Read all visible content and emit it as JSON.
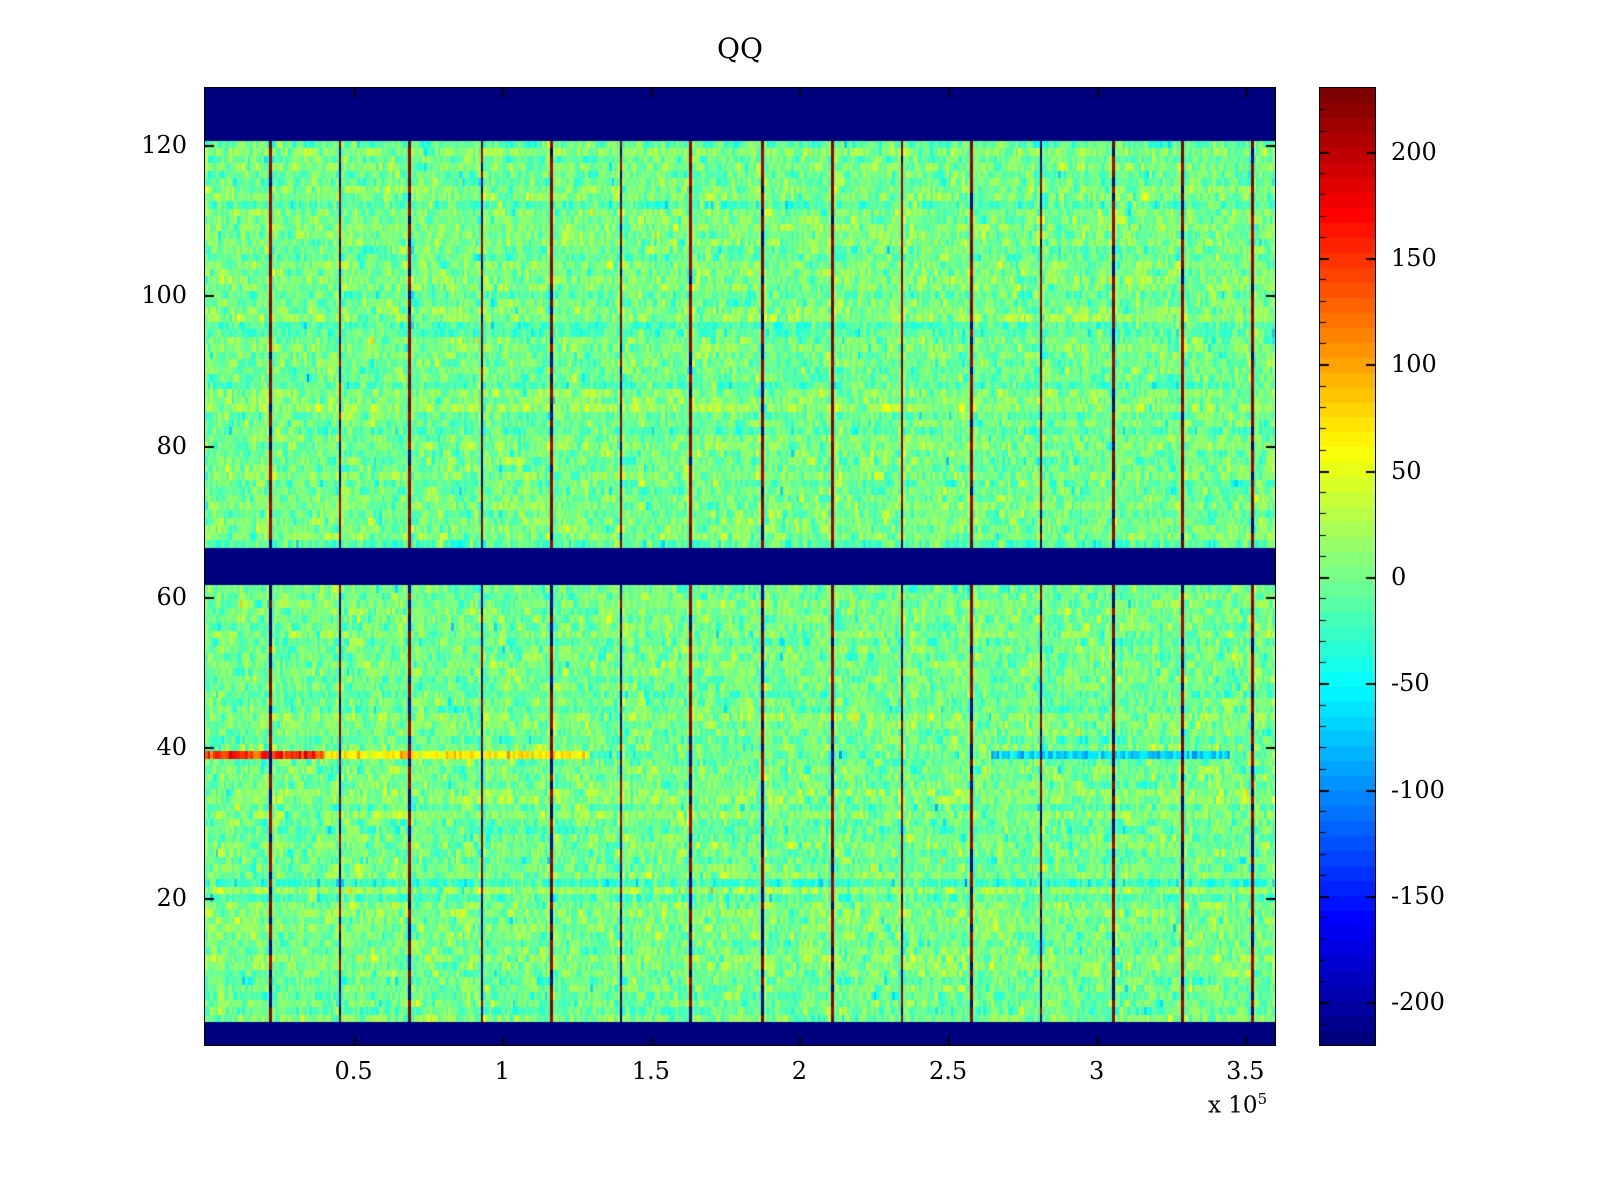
{
  "chart_data": {
    "type": "heatmap",
    "title": "QQ",
    "colormap": "jet",
    "clim": [
      -220,
      230
    ],
    "x_range": [
      0,
      360000
    ],
    "y_range": [
      0.5,
      127.5
    ],
    "x_ticks": {
      "values": [
        50000,
        100000,
        150000,
        200000,
        250000,
        300000,
        350000
      ],
      "labels": [
        "0.5",
        "1",
        "1.5",
        "2",
        "2.5",
        "3",
        "3.5"
      ],
      "exponent_prefix": "x 10",
      "exponent_power": "5"
    },
    "y_ticks": {
      "values": [
        20,
        40,
        60,
        80,
        100,
        120
      ],
      "labels": [
        "20",
        "40",
        "60",
        "80",
        "100",
        "120"
      ]
    },
    "colorbar": {
      "tick_values": [
        -200,
        -150,
        -100,
        -50,
        0,
        50,
        100,
        150,
        200
      ],
      "tick_labels": [
        "-200",
        "-150",
        "-100",
        "-50",
        "0",
        "50",
        "100",
        "150",
        "200"
      ],
      "levels": 64
    },
    "background_noise": {
      "mean": 0,
      "std": 20,
      "row_tint_std": 6
    },
    "solid_bands": [
      {
        "rows": [
          121,
          127.5
        ],
        "value": -220
      },
      {
        "rows": [
          62,
          66.5
        ],
        "value": -220
      },
      {
        "rows": [
          0.5,
          3.2
        ],
        "value": -220
      }
    ],
    "vertical_stripes": {
      "start_x": 22000,
      "spacing_x": 23600,
      "count": 15,
      "hot_value": 215,
      "cold_value": -215
    },
    "row_anomalies": [
      {
        "row": 39,
        "segments": [
          {
            "x": [
              0,
              40000
            ],
            "value": 150
          },
          {
            "x": [
              40000,
              130000
            ],
            "value": 65
          },
          {
            "x": [
              265000,
              345000
            ],
            "value": -70
          }
        ]
      }
    ],
    "colors": {
      "band_blue": "#000080",
      "stripe_red": "#a00000",
      "field_green": "#74ff8b"
    }
  }
}
